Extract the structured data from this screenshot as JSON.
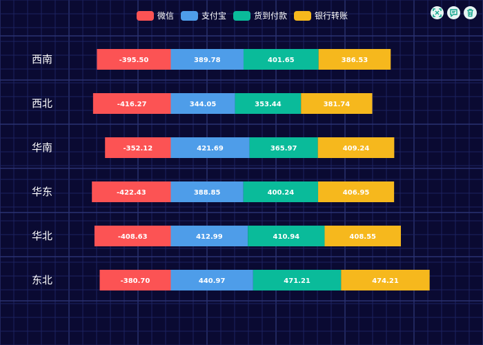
{
  "colors": {
    "background": "#0a0a32",
    "grid_minor": "#1c2260",
    "grid_major": "#2b3272",
    "label": "#ffffff"
  },
  "toolbox": {
    "icons": [
      "data-zoom-icon",
      "data-view-icon",
      "restore-icon"
    ]
  },
  "chart_data": {
    "type": "bar",
    "orientation": "horizontal",
    "stacked": true,
    "categories": [
      "东北",
      "华北",
      "华东",
      "华南",
      "西北",
      "西南"
    ],
    "series": [
      {
        "name": "微信",
        "color": "#fc5354",
        "values": [
          -380.7,
          -408.63,
          -422.43,
          -352.12,
          -416.27,
          -395.5
        ]
      },
      {
        "name": "支付宝",
        "color": "#4e9de9",
        "values": [
          440.97,
          412.99,
          388.85,
          421.69,
          344.05,
          389.78
        ]
      },
      {
        "name": "货到付款",
        "color": "#0abb9a",
        "values": [
          471.21,
          410.94,
          400.24,
          365.97,
          353.44,
          401.65
        ]
      },
      {
        "name": "银行转账",
        "color": "#f6b81d",
        "values": [
          474.21,
          408.55,
          406.95,
          409.24,
          381.74,
          386.53
        ]
      }
    ],
    "legend_position": "top",
    "grid": true
  }
}
